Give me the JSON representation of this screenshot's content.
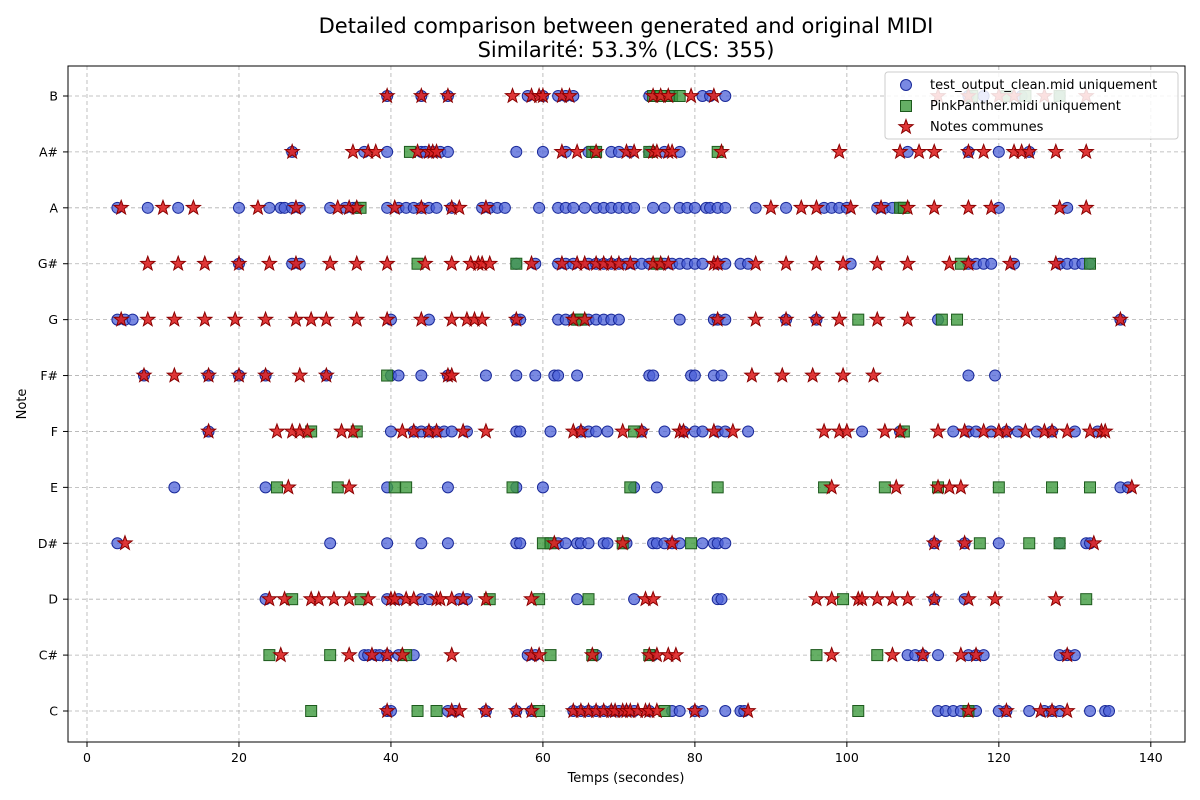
{
  "chart_data": {
    "type": "scatter",
    "title": "Detailed comparison between generated and original MIDI",
    "subtitle": "Similarité: 53.3% (LCS: 355)",
    "xlabel": "Temps (secondes)",
    "ylabel": "Note",
    "xlim": [
      -2.5,
      144.5
    ],
    "xticks": [
      0,
      20,
      40,
      60,
      80,
      100,
      120,
      140
    ],
    "notes": [
      "C",
      "C#",
      "D",
      "D#",
      "E",
      "F",
      "F#",
      "G",
      "G#",
      "A",
      "A#",
      "B"
    ],
    "grid": true,
    "legend_position": "top-right",
    "series": [
      {
        "name": "test_output_clean.mid uniquement",
        "marker": "circle",
        "color": "#4c62d8",
        "edge": "#1a2a9a",
        "points": {
          "B": [
            39.5,
            44,
            47.5,
            58,
            60,
            62,
            63,
            64,
            74,
            77,
            81,
            82,
            84,
            116,
            118,
            123,
            128
          ],
          "A#": [
            27,
            36.5,
            39.5,
            44,
            44.5,
            45.5,
            46.5,
            47.5,
            56.5,
            60,
            63,
            66,
            67,
            69,
            70,
            71.5,
            74,
            76,
            78,
            108,
            116,
            120,
            124
          ],
          "A": [
            4,
            8,
            12,
            20,
            24,
            25.5,
            26,
            27,
            28,
            32,
            34,
            35,
            35.5,
            39.5,
            41,
            42,
            43,
            44,
            45,
            46,
            48,
            52,
            53,
            54,
            55,
            59.5,
            62,
            63,
            64,
            65.5,
            67,
            68,
            69,
            70,
            71,
            72,
            74.5,
            76,
            78,
            79,
            80,
            81.5,
            82,
            83,
            84,
            88,
            92,
            97,
            98,
            99,
            100,
            104,
            105,
            106,
            107,
            120,
            129
          ],
          "G#": [
            20,
            27,
            28,
            56.5,
            59,
            62,
            63,
            64,
            66,
            67,
            68,
            69,
            70,
            71,
            72,
            73,
            74,
            75,
            76,
            77,
            78,
            79,
            80,
            81,
            83,
            84,
            86,
            87,
            100.5,
            116,
            117,
            118,
            119,
            122,
            128,
            129,
            130,
            131,
            132
          ],
          "G": [
            4,
            5,
            6,
            40,
            45,
            56.5,
            57,
            62,
            63,
            64,
            65,
            66,
            67,
            68,
            69,
            70,
            78,
            82.5,
            83,
            84,
            92,
            96,
            112,
            136
          ],
          "F#": [
            7.5,
            16,
            20,
            23.5,
            31.5,
            40,
            41,
            44,
            47.5,
            52.5,
            56.5,
            59,
            61.5,
            62,
            64.5,
            74,
            74.5,
            79.5,
            80,
            82.5,
            83.5,
            116,
            119.5
          ],
          "F": [
            16,
            40,
            43,
            44,
            45,
            46,
            47,
            48,
            50,
            56.5,
            57,
            61,
            65,
            66,
            67,
            68.5,
            73,
            76,
            78.5,
            80,
            81,
            83,
            84,
            87,
            102,
            107,
            114,
            116,
            117,
            119,
            121,
            122.5,
            125,
            127,
            130,
            133
          ],
          "E": [
            11.5,
            23.5,
            39.5,
            47.5,
            56.5,
            60,
            72,
            75,
            136,
            137
          ],
          "D#": [
            4,
            32,
            39.5,
            44,
            47.5,
            56.5,
            57,
            61,
            62,
            63,
            64.5,
            65,
            66,
            68,
            68.5,
            71,
            74.5,
            75,
            76,
            77,
            78,
            81,
            82.5,
            83,
            84,
            111.5,
            115.5,
            120,
            128,
            131.5,
            132
          ],
          "D": [
            23.5,
            39.5,
            41,
            44,
            45,
            49,
            50,
            64.5,
            72,
            83,
            83.5,
            111.5,
            115.5
          ],
          "C#": [
            36.5,
            37,
            38,
            38.5,
            39.5,
            41,
            43,
            58,
            59,
            67,
            74.5,
            108,
            109,
            110,
            112,
            116,
            117,
            118,
            128,
            129,
            130
          ],
          "C": [
            39.5,
            40,
            47.5,
            48.5,
            52.5,
            56.5,
            58.5,
            64,
            65,
            66,
            67,
            68,
            69,
            70,
            71,
            72,
            74,
            77,
            78,
            80,
            81,
            84,
            86,
            86.5,
            112,
            113,
            114,
            115,
            116,
            117,
            120,
            121,
            124,
            126,
            127,
            128,
            132,
            134,
            134.5
          ]
        }
      },
      {
        "name": "PinkPanther.midi uniquement",
        "marker": "square",
        "color": "#3f9b3f",
        "edge": "#1d5a1d",
        "points": {
          "B": [
            74.5,
            75.5,
            77,
            78,
            116.5,
            121,
            123.5,
            128
          ],
          "A#": [
            42.5,
            66.5,
            67,
            74,
            83
          ],
          "A": [
            36,
            107,
            107.5
          ],
          "G#": [
            43.5,
            56.5,
            75,
            115,
            132
          ],
          "G": [
            64.5,
            65,
            101.5,
            112.5,
            114.5
          ],
          "F#": [
            39.5
          ],
          "F": [
            29.5,
            35.5,
            72,
            107.5
          ],
          "E": [
            25,
            33,
            40.5,
            42,
            56,
            71.5,
            83,
            97,
            105,
            112,
            120,
            127,
            132
          ],
          "D#": [
            60,
            61,
            70.5,
            79.5,
            117.5,
            124,
            128
          ],
          "D": [
            27,
            36,
            53,
            59.5,
            66,
            99.5,
            131.5
          ],
          "C#": [
            24,
            32,
            42,
            61,
            66.5,
            74,
            96,
            104
          ],
          "C": [
            29.5,
            43.5,
            46,
            59.5,
            76,
            101.5,
            116
          ]
        }
      },
      {
        "name": "Notes communes",
        "marker": "star",
        "color": "#dd2222",
        "edge": "#8a0000",
        "points": {
          "B": [
            39.5,
            44,
            47.5,
            56,
            58.5,
            59.5,
            60,
            62.5,
            63.5,
            74.5,
            75.5,
            76.5,
            79.5,
            82.5,
            112,
            116,
            120,
            122,
            126,
            131.5
          ],
          "A#": [
            27,
            35,
            37,
            38,
            43.5,
            45,
            45.5,
            46,
            62.5,
            64.5,
            67,
            71,
            72,
            74.5,
            75,
            76.5,
            77,
            83.5,
            99,
            107,
            109.5,
            111.5,
            116,
            118,
            122,
            123,
            124,
            127.5,
            131.5
          ],
          "A": [
            4.5,
            10,
            14,
            22.5,
            27.5,
            33,
            34.5,
            35.5,
            40.5,
            44,
            48,
            49,
            52.5,
            90,
            94,
            96,
            100.5,
            104.5,
            108,
            111.5,
            116,
            119,
            128,
            131.5
          ],
          "G#": [
            8,
            12,
            15.5,
            20,
            24,
            27.5,
            32,
            35.5,
            39.5,
            44.5,
            48,
            50.5,
            51.5,
            52,
            53,
            58.5,
            62.5,
            64.5,
            65.5,
            67,
            68,
            69,
            70,
            71.5,
            74.5,
            75.5,
            76.5,
            82.5,
            83,
            88,
            92,
            96,
            99.5,
            104,
            108,
            113.5,
            116,
            121.5,
            127.5
          ],
          "G": [
            4.5,
            8,
            11.5,
            15.5,
            19.5,
            23.5,
            27.5,
            29.5,
            31.5,
            35.5,
            39.5,
            44,
            48,
            50,
            51,
            52,
            56.5,
            64,
            65.5,
            83,
            88,
            92,
            96,
            99,
            104,
            108,
            136
          ],
          "F#": [
            7.5,
            11.5,
            16,
            20,
            23.5,
            28,
            31.5,
            47.5,
            48,
            87.5,
            91.5,
            95.5,
            99.5,
            103.5
          ],
          "F": [
            16,
            25,
            27,
            28,
            29,
            33.5,
            35,
            41.5,
            43,
            45,
            46,
            49.5,
            52.5,
            64,
            65,
            70.5,
            73,
            78,
            78.5,
            82.5,
            85,
            97,
            99,
            100,
            105,
            107,
            112,
            115.5,
            118,
            120,
            121,
            123.5,
            126,
            127,
            129,
            132,
            133.5,
            134
          ],
          "E": [
            26.5,
            34.5,
            98,
            106.5,
            112,
            113.5,
            115,
            137.5
          ],
          "D#": [
            5,
            61.5,
            70.5,
            77,
            111.5,
            115.5,
            132.5
          ],
          "D": [
            24,
            26,
            29.5,
            30.5,
            32.5,
            34.5,
            37,
            40,
            40.5,
            42,
            43,
            46,
            46.5,
            48,
            49.5,
            52.5,
            58.5,
            73.5,
            74.5,
            96,
            98,
            101.5,
            102,
            104,
            106,
            108,
            111.5,
            116,
            119.5,
            127.5
          ],
          "C#": [
            25.5,
            34.5,
            37.5,
            39.5,
            41.5,
            48,
            58.5,
            59.5,
            66.5,
            74,
            75,
            76.5,
            77.5,
            98,
            106,
            110,
            115,
            117,
            129
          ],
          "C": [
            39.5,
            48,
            49,
            52.5,
            56.5,
            58.5,
            64,
            65,
            66,
            67,
            68,
            69,
            69.5,
            70.5,
            71,
            71.5,
            72.5,
            73.5,
            74,
            75,
            80,
            87,
            116,
            121,
            125.5,
            127,
            129
          ]
        }
      }
    ]
  }
}
